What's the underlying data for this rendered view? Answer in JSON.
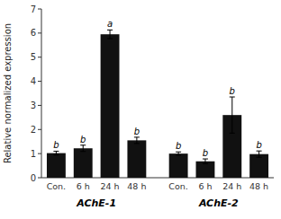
{
  "chart_data": {
    "type": "bar",
    "ylabel": "Relative normalized expression",
    "groups": [
      {
        "label": "AChE-1",
        "categories": [
          "Con.",
          "6 h",
          "24 h",
          "48 h"
        ],
        "values": [
          1.02,
          1.22,
          5.95,
          1.55
        ],
        "errors": [
          0.08,
          0.13,
          0.18,
          0.13
        ],
        "annotations": [
          "b",
          "b",
          "a",
          "b"
        ]
      },
      {
        "label": "AChE-2",
        "categories": [
          "Con.",
          "6 h",
          "24 h",
          "48 h"
        ],
        "values": [
          1.0,
          0.68,
          2.6,
          0.98
        ],
        "errors": [
          0.07,
          0.1,
          0.75,
          0.13
        ],
        "annotations": [
          "b",
          "b",
          "b",
          "b"
        ]
      }
    ],
    "color": "#111111",
    "ylim": [
      0,
      7
    ],
    "yticks": [
      0,
      1,
      2,
      3,
      4,
      5,
      6,
      7
    ]
  }
}
